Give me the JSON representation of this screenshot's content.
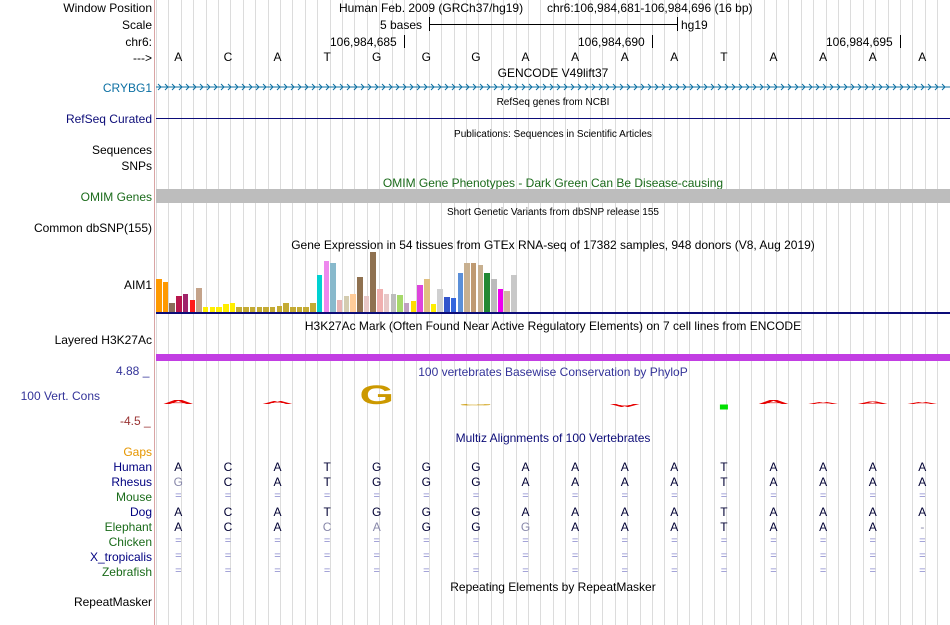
{
  "header": {
    "window_position_label": "Window Position",
    "assembly": "Human Feb. 2009 (GRCh37/hg19)",
    "position": "chr6:106,984,681-106,984,696 (16 bp)",
    "scale_label": "Scale",
    "scale_text": "5 bases",
    "scale_db": "hg19",
    "chrom_label": "chr6:",
    "coord_ticks": [
      "106,984,685",
      "106,984,690",
      "106,984,695"
    ],
    "strand_label": "--->"
  },
  "sequence": [
    "A",
    "C",
    "A",
    "T",
    "G",
    "G",
    "G",
    "A",
    "A",
    "A",
    "A",
    "T",
    "A",
    "A",
    "A",
    "A"
  ],
  "tracks": {
    "gencode": {
      "title": "GENCODE V49lift37",
      "gene": "CRYBG1"
    },
    "refseq": {
      "title": "RefSeq genes from NCBI",
      "label": "RefSeq Curated"
    },
    "publications": {
      "title": "Publications: Sequences in Scientific Articles",
      "label": "Sequences"
    },
    "snps": {
      "label": "SNPs"
    },
    "omim": {
      "title": "OMIM Gene Phenotypes - Dark Green Can Be Disease-causing",
      "label": "OMIM Genes"
    },
    "dbsnp": {
      "title": "Short Genetic Variants from dbSNP release 155",
      "label": "Common dbSNP(155)"
    },
    "gtex": {
      "title": "Gene Expression in 54 tissues from GTEx RNA-seq of 17382 samples, 948 donors (V8, Aug 2019)",
      "label": "AIM1",
      "bars": [
        0.55,
        0.5,
        0.15,
        0.27,
        0.3,
        0.2,
        0.4,
        0.08,
        0.08,
        0.08,
        0.13,
        0.15,
        0.08,
        0.08,
        0.08,
        0.08,
        0.08,
        0.08,
        0.1,
        0.15,
        0.08,
        0.08,
        0.08,
        0.15,
        0.62,
        0.85,
        0.82,
        0.2,
        0.27,
        0.3,
        0.58,
        0.27,
        1.0,
        0.38,
        0.3,
        0.3,
        0.28,
        0.15,
        0.18,
        0.45,
        0.55,
        0.13,
        0.38,
        0.25,
        0.23,
        0.65,
        0.82,
        0.82,
        0.78,
        0.65,
        0.55,
        0.38,
        0.35,
        0.62
      ],
      "colors": [
        "#ff9900",
        "#ff9900",
        "#8a6d5a",
        "#b8174d",
        "#a0246a",
        "#ff1a1a",
        "#c4a38a",
        "#ffee00",
        "#ffee00",
        "#ffee00",
        "#ffee00",
        "#ffee00",
        "#c4ab34",
        "#c4ab34",
        "#c4ab34",
        "#c4ab34",
        "#c4ab34",
        "#c4ab34",
        "#c4ab34",
        "#c4ab34",
        "#c4ab34",
        "#c4ab34",
        "#c4ab34",
        "#c4ab34",
        "#00d1d1",
        "#ee88ee",
        "#88b9cc",
        "#e8b4b4",
        "#d4ccb0",
        "#ffcc99",
        "#8f7150",
        "#e8c8c8",
        "#8f7150",
        "#f0b0b0",
        "#e8c8c8",
        "#bdbdbd",
        "#a6d96a",
        "#c0a0c0",
        "#ffdd00",
        "#dd44dd",
        "#e0c080",
        "#ffee00",
        "#d0d0d0",
        "#3355cc",
        "#3366dd",
        "#5b8fd8",
        "#c8b090",
        "#bf9a72",
        "#c8b090",
        "#228833",
        "#bbbbbb",
        "#ee00ee",
        "#d0b8a0",
        "#c8c8c8"
      ]
    },
    "h3k27ac": {
      "title": "H3K27Ac Mark (Often Found Near Active Regulatory Elements) on 7 cell lines from ENCODE",
      "label": "Layered H3K27Ac"
    },
    "phylop": {
      "title": "100 vertebrates Basewise Conservation by PhyloP",
      "label": "100 Vert. Cons",
      "max": "4.88 _",
      "min": "-4.5 _",
      "scores": [
        0.12,
        0.0,
        0.1,
        0.0,
        0.55,
        0.0,
        -0.03,
        0.0,
        0.0,
        -0.1,
        0.0,
        0.0,
        0.12,
        0.06,
        0.08,
        0.05
      ]
    },
    "multiz": {
      "title": "Multiz Alignments of 100 Vertebrates",
      "gaps_label": "Gaps",
      "species": [
        {
          "name": "Human",
          "seq": "ACATGGGAAAATAAAA",
          "color": "#000080"
        },
        {
          "name": "Rhesus",
          "seq": "GCATGGGAAAATAAAA",
          "color": "#000080"
        },
        {
          "name": "Mouse",
          "seq": "================",
          "color": "#1a6b1a"
        },
        {
          "name": "Dog",
          "seq": "ACATGGGAAAATAAAA",
          "color": "#000080"
        },
        {
          "name": "Elephant",
          "seq": "ACACAGGGAAATAAA-",
          "color": "#1a6b1a"
        },
        {
          "name": "Chicken",
          "seq": "================",
          "color": "#1a6b1a"
        },
        {
          "name": "X_tropicalis",
          "seq": "================",
          "color": "#000080"
        },
        {
          "name": "Zebrafish",
          "seq": "================",
          "color": "#1a6b1a"
        }
      ]
    },
    "repeatmasker": {
      "title": "Repeating Elements by RepeatMasker",
      "label": "RepeatMasker"
    }
  },
  "colors": {
    "gencode": "#0c70a3",
    "refseq": "#0c0c78",
    "omim": "#1b6b1b",
    "phylop": "#333399",
    "phylop_min": "#993333",
    "h3k27ac": "#c23ee3",
    "gaps": "#e69600"
  }
}
